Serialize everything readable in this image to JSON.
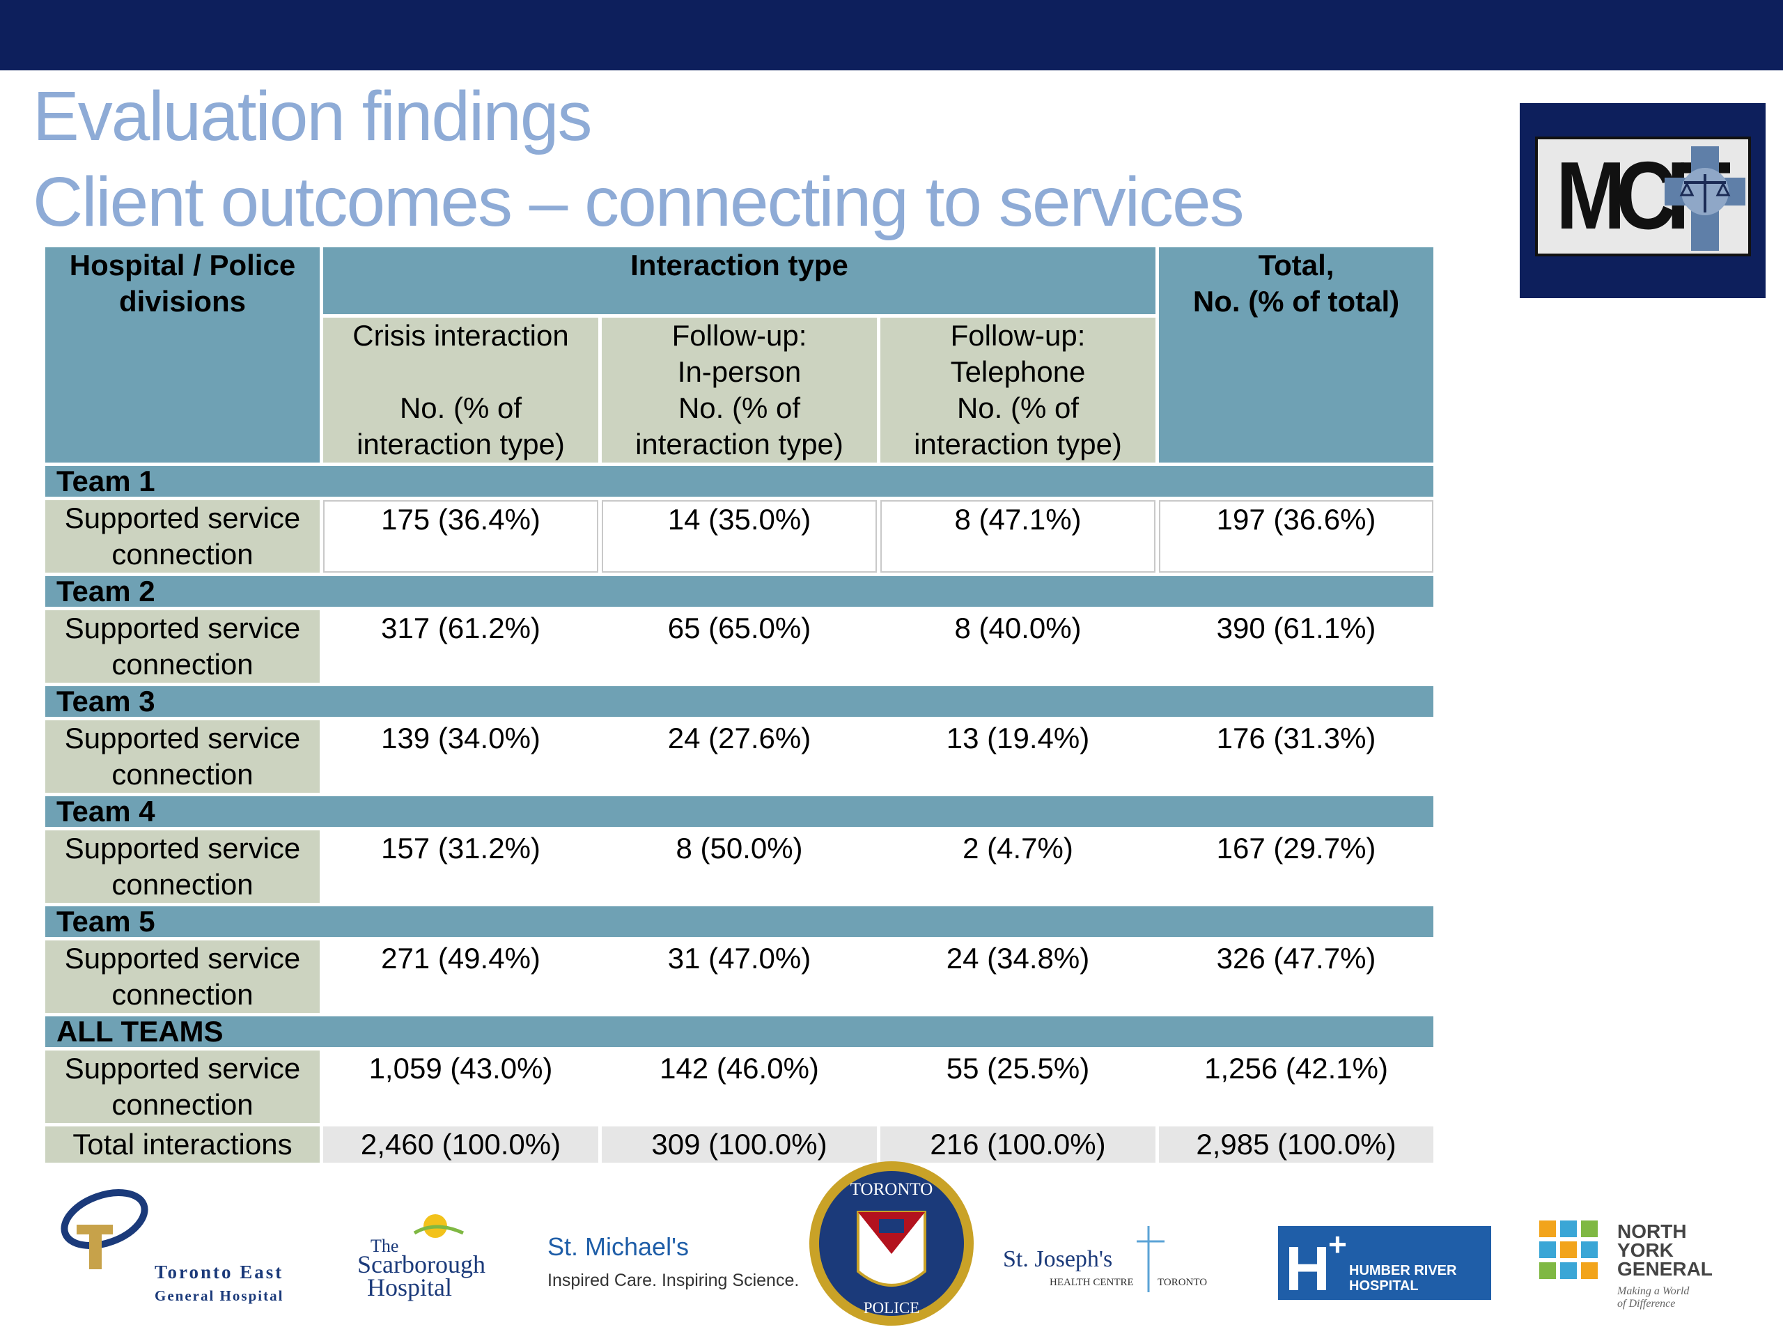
{
  "header": {
    "title_line1": "Evaluation findings",
    "title_line2": "Client outcomes – connecting to services",
    "logo_text": "MCIT"
  },
  "table": {
    "col1_header": "Hospital / Police divisions",
    "interaction_header": "Interaction type",
    "total_header_line1": "Total,",
    "total_header_line2": "No. (% of total)",
    "sub_headers": [
      {
        "line1": "Crisis interaction",
        "line2": "",
        "line3": "No. (% of",
        "line4": "interaction type)"
      },
      {
        "line1": "Follow-up:",
        "line2": "In-person",
        "line3": "No. (% of",
        "line4": "interaction type)"
      },
      {
        "line1": "Follow-up:",
        "line2": "Telephone",
        "line3": "No. (% of",
        "line4": "interaction type)"
      }
    ],
    "row_label": "Supported service connection",
    "groups": [
      {
        "name": "Team 1",
        "values": [
          "175 (36.4%)",
          "14 (35.0%)",
          "8 (47.1%)",
          "197 (36.6%)"
        ]
      },
      {
        "name": "Team 2",
        "values": [
          "317 (61.2%)",
          "65 (65.0%)",
          "8 (40.0%)",
          "390 (61.1%)"
        ]
      },
      {
        "name": "Team 3",
        "values": [
          "139 (34.0%)",
          "24 (27.6%)",
          "13 (19.4%)",
          "176 (31.3%)"
        ]
      },
      {
        "name": "Team 4",
        "values": [
          "157 (31.2%)",
          "8 (50.0%)",
          "2 (4.7%)",
          "167 (29.7%)"
        ]
      },
      {
        "name": "Team 5",
        "values": [
          "271 (49.4%)",
          "31 (47.0%)",
          "24 (34.8%)",
          "326 (47.7%)"
        ]
      },
      {
        "name": "ALL TEAMS",
        "values": [
          "1,059 (43.0%)",
          "142 (46.0%)",
          "55 (25.5%)",
          "1,256 (42.1%)"
        ]
      }
    ],
    "total_row": {
      "label": "Total interactions",
      "values": [
        "2,460 (100.0%)",
        "309 (100.0%)",
        "216 (100.0%)",
        "2,985 (100.0%)"
      ]
    }
  },
  "partner_logos": {
    "toronto_east_line1": "Toronto East",
    "toronto_east_line2": "General Hospital",
    "scarborough_line1": "The",
    "scarborough_line2": "Scarborough",
    "scarborough_line3": "Hospital",
    "st_michaels_name": "St. Michael's",
    "st_michaels_tagline": "Inspired Care. Inspiring Science.",
    "police_top": "TORONTO",
    "police_bottom": "POLICE",
    "st_josephs_name": "St. Joseph's",
    "st_josephs_sub1": "HEALTH CENTRE",
    "st_josephs_sub2": "TORONTO",
    "humber_letter": "H",
    "humber_line1": "HUMBER RIVER",
    "humber_line2": "HOSPITAL",
    "nyg_line1": "NORTH",
    "nyg_line2": "YORK",
    "nyg_line3": "GENERAL",
    "nyg_tagline1": "Making a World",
    "nyg_tagline2": "of Difference"
  },
  "colors": {
    "top_bar": "#0d1f5c",
    "title": "#8eabd6",
    "header_teal": "#6fa1b4",
    "label_sage": "#ccd3c0",
    "total_row": "#e6e6e6"
  }
}
